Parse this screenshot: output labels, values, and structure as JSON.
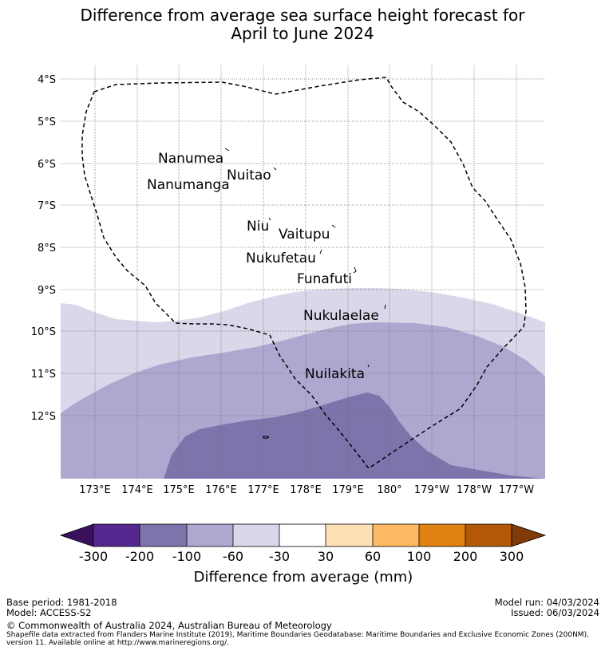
{
  "title": {
    "line1": "Difference from average sea surface height forecast for",
    "line2": "April to June 2024"
  },
  "map": {
    "lat_labels": [
      "4°S",
      "5°S",
      "6°S",
      "7°S",
      "8°S",
      "9°S",
      "10°S",
      "11°S",
      "12°S"
    ],
    "lon_labels": [
      "173°E",
      "174°E",
      "175°E",
      "176°E",
      "177°E",
      "178°E",
      "179°E",
      "180°",
      "179°W",
      "178°W",
      "177°W"
    ],
    "places": [
      "Nanumea",
      "Nuitao",
      "Nanumanga",
      "Niu",
      "Vaitupu",
      "Nukufetau",
      "Funafuti",
      "Nukulaelae",
      "Nuilakita"
    ]
  },
  "legend": {
    "ticks": [
      "-300",
      "-200",
      "-100",
      "-60",
      "-30",
      "30",
      "60",
      "100",
      "200",
      "300"
    ],
    "label": "Difference from average (mm)",
    "colors": [
      "#3a0f5c",
      "#54278f",
      "#7f73ac",
      "#aea8d0",
      "#d9d8ea",
      "#ffffff",
      "#fee0b6",
      "#fdb863",
      "#e08214",
      "#b35806",
      "#7f3b08"
    ]
  },
  "footer": {
    "base_period": "Base period: 1981-2018",
    "model": "Model: ACCESS-S2",
    "model_run": "Model run: 04/03/2024",
    "issued": "Issued: 06/03/2024",
    "copyright": "© Commonwealth of Australia 2024, Australian Bureau of Meteorology",
    "shapefile_line1": "Shapefile data extracted from Flanders Marine Institute (2019), Maritime Boundaries Geodatabase: Maritime Boundaries and Exclusive Economic Zones (200NM),",
    "shapefile_line2": "version 11. Available online at http://www.marineregions.org/."
  }
}
